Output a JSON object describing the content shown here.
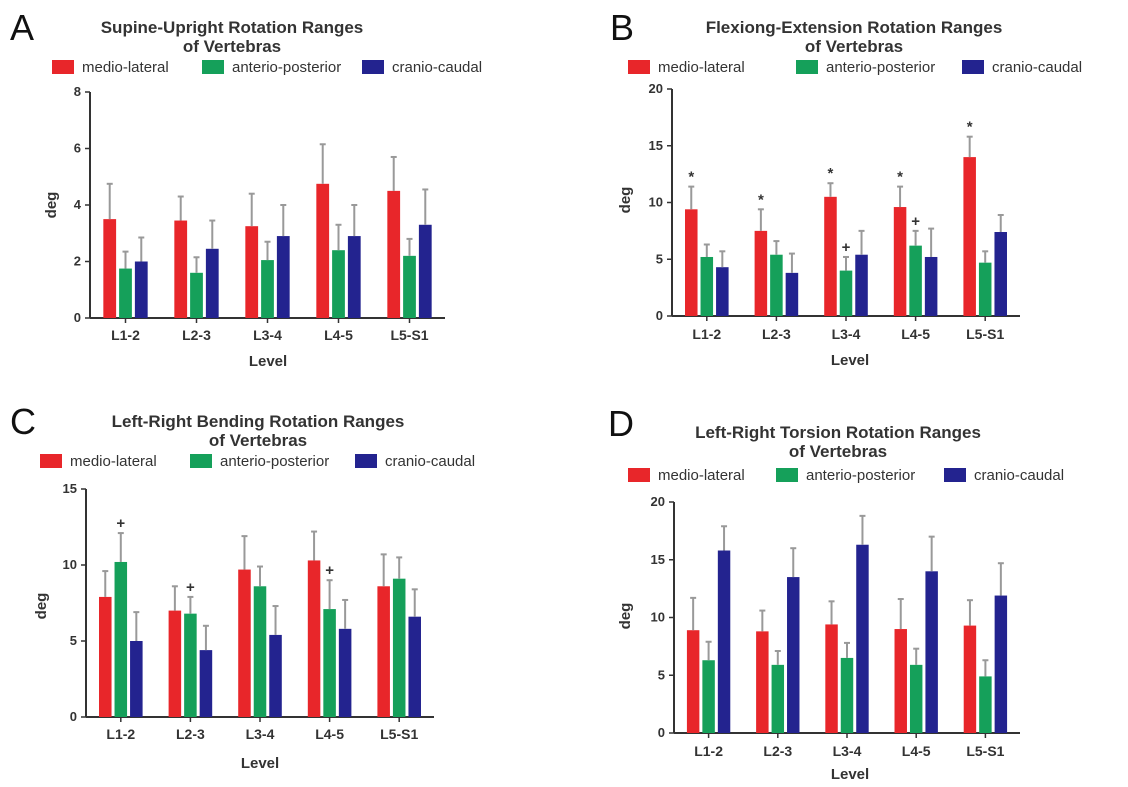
{
  "chart_data": [
    {
      "type": "bar",
      "panel_label": "A",
      "title": "Supine-Upright Rotation Ranges",
      "subtitle": "of Vertebras",
      "xlabel": "Level",
      "ylabel": "deg",
      "ylim": [
        0,
        8
      ],
      "yticks": [
        "0",
        "2",
        "4",
        "6",
        "8"
      ],
      "categories": [
        "L1-2",
        "L2-3",
        "L3-4",
        "L4-5",
        "L5-S1"
      ],
      "legend_position": "top",
      "series": [
        {
          "name": "medio-lateral",
          "color": "#e8262a",
          "values": [
            3.5,
            3.45,
            3.25,
            4.75,
            4.5
          ],
          "errors": [
            1.25,
            0.85,
            1.15,
            1.4,
            1.2
          ],
          "markers": [
            "",
            "",
            "",
            "",
            ""
          ]
        },
        {
          "name": "anterio-posterior",
          "color": "#15a05a",
          "values": [
            1.75,
            1.6,
            2.05,
            2.4,
            2.2
          ],
          "errors": [
            0.6,
            0.55,
            0.65,
            0.9,
            0.6
          ],
          "markers": [
            "",
            "",
            "",
            "",
            ""
          ]
        },
        {
          "name": "cranio-caudal",
          "color": "#23238f",
          "values": [
            2.0,
            2.45,
            2.9,
            2.9,
            3.3
          ],
          "errors": [
            0.85,
            1.0,
            1.1,
            1.1,
            1.25
          ],
          "markers": [
            "",
            "",
            "",
            "",
            ""
          ]
        }
      ]
    },
    {
      "type": "bar",
      "panel_label": "B",
      "title": "Flexiong-Extension Rotation Ranges",
      "subtitle": "of Vertebras",
      "xlabel": "Level",
      "ylabel": "deg",
      "ylim": [
        0,
        20
      ],
      "yticks": [
        "0",
        "5",
        "10",
        "15",
        "20"
      ],
      "categories": [
        "L1-2",
        "L2-3",
        "L3-4",
        "L4-5",
        "L5-S1"
      ],
      "legend_position": "top",
      "series": [
        {
          "name": "medio-lateral",
          "color": "#e8262a",
          "values": [
            9.4,
            7.5,
            10.5,
            9.6,
            14.0
          ],
          "errors": [
            2.0,
            1.9,
            1.2,
            1.8,
            1.8
          ],
          "markers": [
            "*",
            "*",
            "*",
            "*",
            "*"
          ]
        },
        {
          "name": "anterio-posterior",
          "color": "#15a05a",
          "values": [
            5.2,
            5.4,
            4.0,
            6.2,
            4.7
          ],
          "errors": [
            1.1,
            1.2,
            1.2,
            1.3,
            1.0
          ],
          "markers": [
            "",
            "",
            "+",
            "+",
            ""
          ]
        },
        {
          "name": "cranio-caudal",
          "color": "#23238f",
          "values": [
            4.3,
            3.8,
            5.4,
            5.2,
            7.4
          ],
          "errors": [
            1.4,
            1.7,
            2.1,
            2.5,
            1.5
          ],
          "markers": [
            "",
            "",
            "",
            "",
            ""
          ]
        }
      ]
    },
    {
      "type": "bar",
      "panel_label": "C",
      "title": "Left-Right Bending Rotation Ranges",
      "subtitle": "of Vertebras",
      "xlabel": "Level",
      "ylabel": "deg",
      "ylim": [
        0,
        15
      ],
      "yticks": [
        "0",
        "5",
        "10",
        "15"
      ],
      "categories": [
        "L1-2",
        "L2-3",
        "L3-4",
        "L4-5",
        "L5-S1"
      ],
      "legend_position": "top",
      "series": [
        {
          "name": "medio-lateral",
          "color": "#e8262a",
          "values": [
            7.9,
            7.0,
            9.7,
            10.3,
            8.6
          ],
          "errors": [
            1.7,
            1.6,
            2.2,
            1.9,
            2.1
          ],
          "markers": [
            "",
            "",
            "",
            "",
            ""
          ]
        },
        {
          "name": "anterio-posterior",
          "color": "#15a05a",
          "values": [
            10.2,
            6.8,
            8.6,
            7.1,
            9.1
          ],
          "errors": [
            1.9,
            1.1,
            1.3,
            1.9,
            1.4
          ],
          "markers": [
            "+",
            "+",
            "",
            "+",
            ""
          ]
        },
        {
          "name": "cranio-caudal",
          "color": "#23238f",
          "values": [
            5.0,
            4.4,
            5.4,
            5.8,
            6.6
          ],
          "errors": [
            1.9,
            1.6,
            1.9,
            1.9,
            1.8
          ],
          "markers": [
            "",
            "",
            "",
            "",
            ""
          ]
        }
      ]
    },
    {
      "type": "bar",
      "panel_label": "D",
      "title": "Left-Right Torsion Rotation Ranges",
      "subtitle": "of Vertebras",
      "xlabel": "Level",
      "ylabel": "deg",
      "ylim": [
        0,
        20
      ],
      "yticks": [
        "0",
        "5",
        "10",
        "15",
        "20"
      ],
      "categories": [
        "L1-2",
        "L2-3",
        "L3-4",
        "L4-5",
        "L5-S1"
      ],
      "legend_position": "top",
      "series": [
        {
          "name": "medio-lateral",
          "color": "#e8262a",
          "values": [
            8.9,
            8.8,
            9.4,
            9.0,
            9.3
          ],
          "errors": [
            2.8,
            1.8,
            2.0,
            2.6,
            2.2
          ],
          "markers": [
            "",
            "",
            "",
            "",
            ""
          ]
        },
        {
          "name": "anterio-posterior",
          "color": "#15a05a",
          "values": [
            6.3,
            5.9,
            6.5,
            5.9,
            4.9
          ],
          "errors": [
            1.6,
            1.2,
            1.3,
            1.4,
            1.4
          ],
          "markers": [
            "",
            "",
            "",
            "",
            ""
          ]
        },
        {
          "name": "cranio-caudal",
          "color": "#23238f",
          "values": [
            15.8,
            13.5,
            16.3,
            14.0,
            11.9
          ],
          "errors": [
            2.1,
            2.5,
            2.5,
            3.0,
            2.8
          ],
          "markers": [
            "",
            "",
            "",
            "",
            ""
          ]
        }
      ]
    }
  ]
}
